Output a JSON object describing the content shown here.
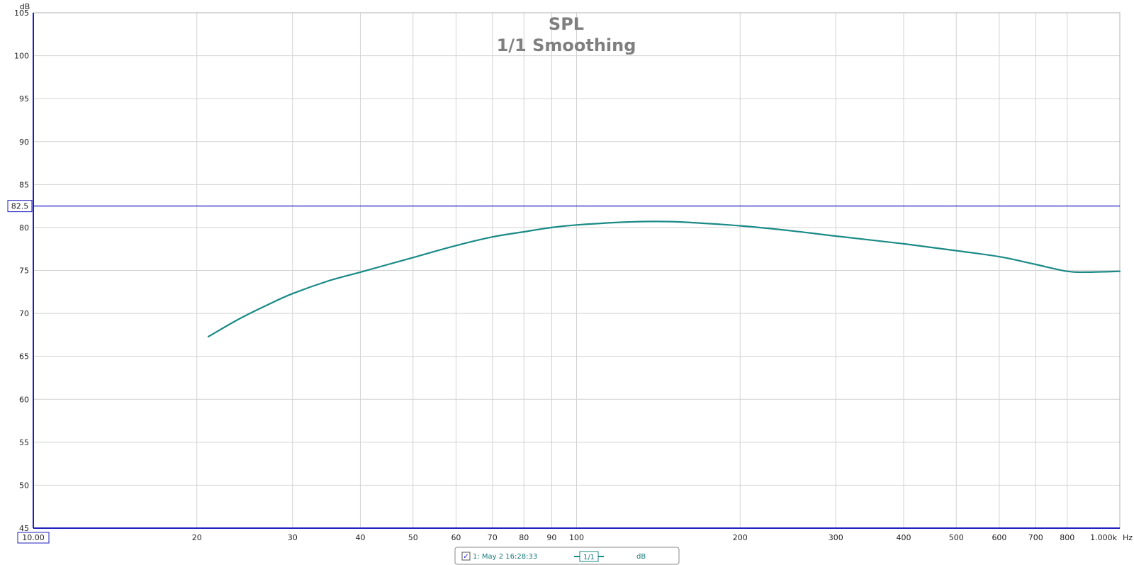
{
  "chart_data": {
    "type": "line",
    "title": "SPL",
    "subtitle": "1/1 Smoothing",
    "ylabel": "dB",
    "xlabel": "Hz",
    "xscale": "log",
    "xlim": [
      10,
      1000
    ],
    "ylim": [
      45,
      105
    ],
    "grid": true,
    "y_ticks": [
      "45",
      "50",
      "55",
      "60",
      "65",
      "70",
      "75",
      "80",
      "85",
      "90",
      "95",
      "100",
      "105"
    ],
    "x_ticks": [
      {
        "value": 20,
        "label": "20"
      },
      {
        "value": 30,
        "label": "30"
      },
      {
        "value": 40,
        "label": "40"
      },
      {
        "value": 50,
        "label": "50"
      },
      {
        "value": 60,
        "label": "60"
      },
      {
        "value": 70,
        "label": "70"
      },
      {
        "value": 80,
        "label": "80"
      },
      {
        "value": 90,
        "label": "90"
      },
      {
        "value": 100,
        "label": "100"
      },
      {
        "value": 200,
        "label": "200"
      },
      {
        "value": 300,
        "label": "300"
      },
      {
        "value": 400,
        "label": "400"
      },
      {
        "value": 500,
        "label": "500"
      },
      {
        "value": 600,
        "label": "600"
      },
      {
        "value": 700,
        "label": "700"
      },
      {
        "value": 800,
        "label": "800"
      },
      {
        "value": 1000,
        "label": "1.000k"
      }
    ],
    "x_min_label": "10.00",
    "cursor": {
      "y": 82.5,
      "label": "82.5",
      "color": "#1f1fbf"
    },
    "series": [
      {
        "name": "1: May 2 16:28:33",
        "color": "#1a8a86",
        "points": [
          [
            21,
            67.3
          ],
          [
            24,
            69.4
          ],
          [
            27,
            71.0
          ],
          [
            30,
            72.3
          ],
          [
            35,
            73.8
          ],
          [
            40,
            74.8
          ],
          [
            45,
            75.7
          ],
          [
            50,
            76.5
          ],
          [
            60,
            77.9
          ],
          [
            70,
            78.9
          ],
          [
            80,
            79.5
          ],
          [
            90,
            80.0
          ],
          [
            100,
            80.3
          ],
          [
            120,
            80.6
          ],
          [
            140,
            80.7
          ],
          [
            160,
            80.6
          ],
          [
            200,
            80.2
          ],
          [
            250,
            79.6
          ],
          [
            300,
            79.0
          ],
          [
            400,
            78.1
          ],
          [
            500,
            77.3
          ],
          [
            600,
            76.6
          ],
          [
            700,
            75.7
          ],
          [
            800,
            74.9
          ],
          [
            870,
            74.8
          ],
          [
            1000,
            74.9
          ]
        ]
      }
    ]
  },
  "legend": {
    "checkbox_mark": "✓",
    "item_label": "1: May 2 16:28:33",
    "smoothing_badge": "1/1",
    "unit": "dB"
  }
}
